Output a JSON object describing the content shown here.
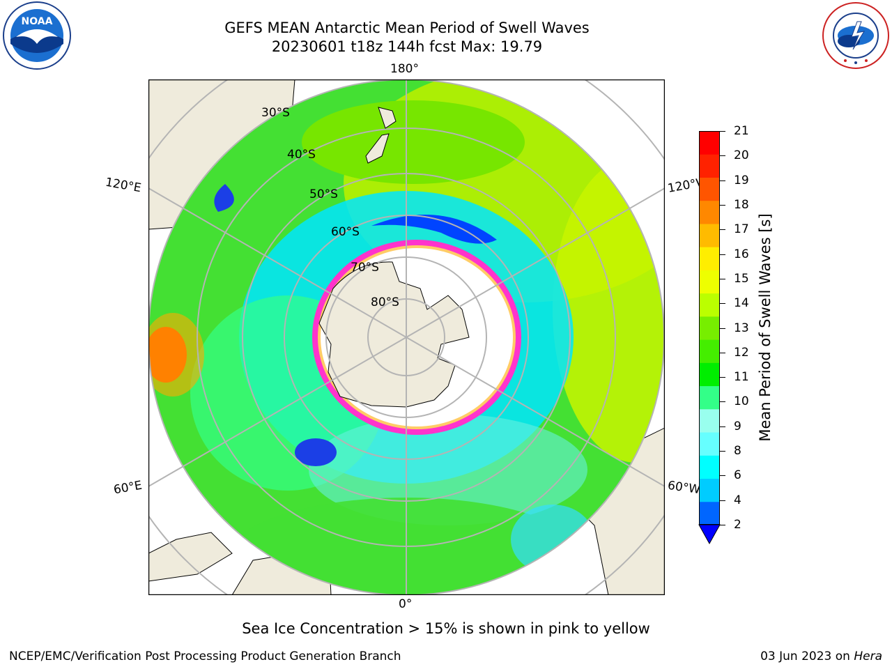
{
  "header": {
    "title_line1": "GEFS MEAN Antarctic Mean Period of Swell Waves",
    "title_line2": "20230601 t18z 144h fcst   Max: 19.79"
  },
  "map": {
    "longitude_labels": [
      "180°",
      "120°E",
      "120°W",
      "60°E",
      "60°W",
      "0°"
    ],
    "latitude_labels": [
      "30°S",
      "40°S",
      "50°S",
      "60°S",
      "70°S",
      "80°S"
    ],
    "colors": {
      "land": "#efebdc",
      "grid": "#b4b4b4",
      "ice_edge": "#ff33cc",
      "ocean_base": "#39e039"
    }
  },
  "colorbar": {
    "label": "Mean Period of Swell Waves [s]",
    "ticks": [
      "21",
      "20",
      "19",
      "18",
      "17",
      "16",
      "15",
      "14",
      "13",
      "12",
      "11",
      "10",
      "9",
      "8",
      "6",
      "4",
      "2"
    ],
    "colors": [
      "#0000ff",
      "#0066ff",
      "#00ccff",
      "#00ffff",
      "#66ffff",
      "#99ffee",
      "#33ff88",
      "#00ee00",
      "#44ee00",
      "#77ee00",
      "#bbff00",
      "#eeff00",
      "#ffee00",
      "#ffbb00",
      "#ff8800",
      "#ff5500",
      "#ff2200",
      "#ff0000"
    ]
  },
  "notes": {
    "sea_ice": "Sea Ice Concentration > 15% is shown in pink to yellow"
  },
  "footer": {
    "left": "NCEP/EMC/Verification Post Processing Product Generation Branch",
    "date": "03 Jun 2023 on",
    "machine": "Hera"
  },
  "logos": {
    "noaa": "NOAA",
    "nws": "NATIONAL WEATHER SERVICE"
  }
}
